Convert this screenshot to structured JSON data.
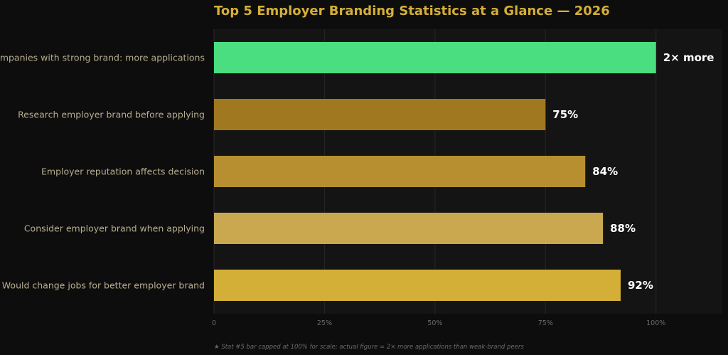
{
  "chart_data": {
    "type": "bar",
    "orientation": "horizontal",
    "title": "Top 5 Employer Branding Statistics at a Glance — 2026",
    "categories": [
      "Companies with strong brand: more applications",
      "Research employer brand before applying",
      "Employer reputation affects decision",
      "Consider employer brand when applying",
      "Would change jobs for better employer brand"
    ],
    "values": [
      100,
      75,
      84,
      88,
      92
    ],
    "value_labels": [
      "2× more",
      "75%",
      "84%",
      "88%",
      "92%"
    ],
    "colors": [
      "#4ade80",
      "#a07820",
      "#b88f30",
      "#caa850",
      "#d4af37"
    ],
    "xlim": [
      0,
      115
    ],
    "xticks": [
      0,
      25,
      50,
      75,
      100
    ],
    "xtick_labels": [
      "0",
      "25%",
      "50%",
      "75%",
      "100%"
    ],
    "grid": true,
    "footnote": "★ Stat #5 bar capped at 100% for scale; actual figure = 2× more applications than weak-brand peers"
  },
  "colors": {
    "page_background": "#0d0d0d",
    "plot_background": "#141414",
    "grid": "#262626",
    "title": "#d4af37"
  }
}
